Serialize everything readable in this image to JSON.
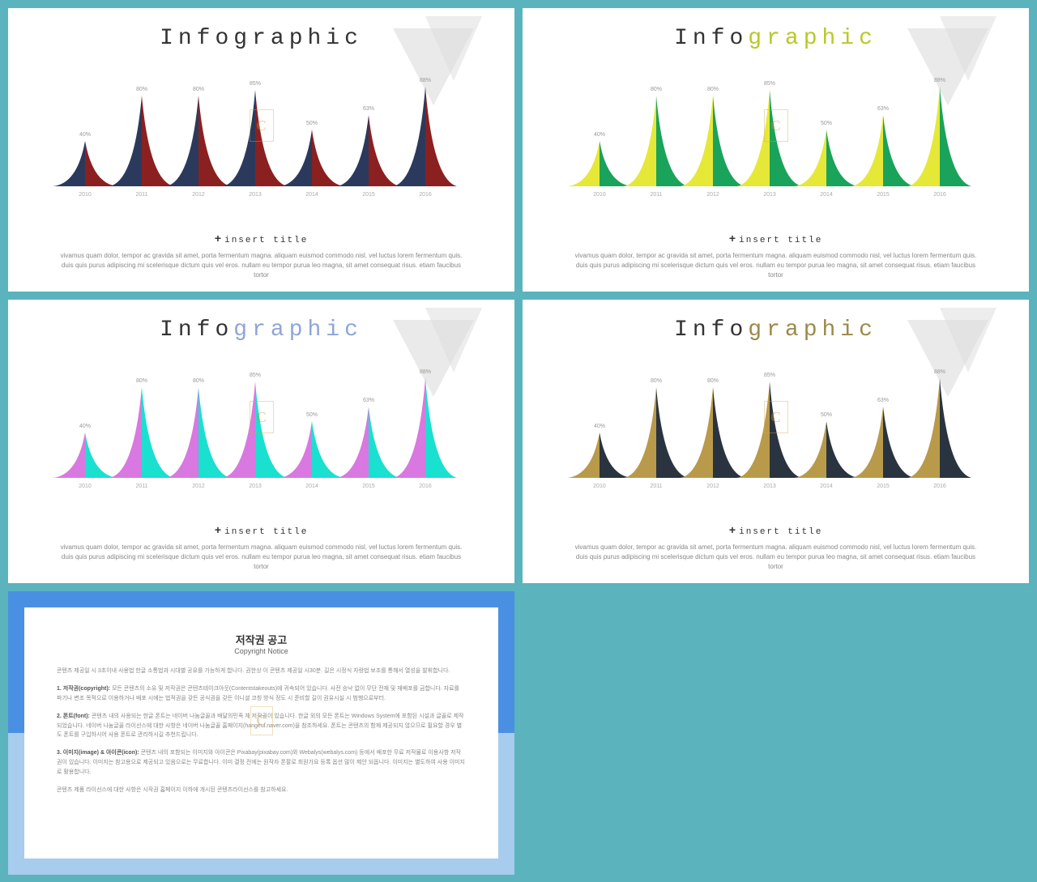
{
  "background_color": "#5bb3bd",
  "title": {
    "part_a": "Info",
    "part_b": "graphic"
  },
  "bg_triangle_color": "#dcdcdc",
  "watermark_letter": "C",
  "watermark_border": "#d4a84a",
  "caption": {
    "plus": "+",
    "title": "insert title",
    "body": "vivamus quam dolor, tempor ac gravida sit amet, porta fermentum magna. aliquam euismod commodo nisl, vel luctus lorem fermentum quis. duis quis purus adipiscing mi scelerisque dictum quis vel eros. nullam eu tempor purua leo magna, sit amet consequat risus. etiam faucibus tortor"
  },
  "chart": {
    "type": "infographic-peaks",
    "years": [
      "2010",
      "2011",
      "2012",
      "2013",
      "2014",
      "2015",
      "2016"
    ],
    "values": [
      40,
      80,
      80,
      85,
      50,
      63,
      88
    ],
    "labels": [
      "40%",
      "80%",
      "80%",
      "85%",
      "50%",
      "63%",
      "88%"
    ],
    "max": 100,
    "peak_spacing": 70,
    "label_fontsize": 7,
    "label_color": "#999999",
    "year_color": "#aaaaaa"
  },
  "variants": [
    {
      "title_b_color": "#333333",
      "left_color": "#2b3a5c",
      "right_color": "#8b2020"
    },
    {
      "title_b_color": "#b8c828",
      "left_color": "#e6e838",
      "right_color": "#1aa35a"
    },
    {
      "title_b_color": "#8fa5d8",
      "left_color": "#d878e0",
      "right_color": "#1ae0d0"
    },
    {
      "title_b_color": "#9a8a4a",
      "left_color": "#b89a4a",
      "right_color": "#2a3440"
    }
  ],
  "copyright": {
    "top_bg": "#4a90e2",
    "bot_bg": "#a7cced",
    "h1": "저작권 공고",
    "h2": "Copyright Notice",
    "p1": "콘텐츠 제공일 시 3초이내 사용법 한글 소통법과 시대별 공유를 가능하게 합니다. 권한상 이 콘텐츠 제공일 시30분. 길은 시정식 자랑법 보조를 통해서 열성을 발휘합니다.",
    "b1": "1. 저작권(copyright):",
    "p2": "모든 콘텐츠의 소유 및 저작권은 콘텐츠테이크아웃(Contentstakeouts)에 귀속되어 있습니다. 사전 승낙 없이 무단 전재 및 재배포를 금합니다. 자료를 파기나 변조 목적으로 이용하거나 배포 시에는 법적권을 갖든 공식권을 갖든 이니셜 코칭 방식 정도 시 준비할 길이 권유시실 시 범행으로부터.",
    "b2": "2. 폰트(font):",
    "p3": "콘텐츠 내의 사용되는 한글 폰트는 네이버 나눔글꼴과 배달의민족 체 저작권이 있습니다. 한글 외의 모든 폰트는 Windows System에 포함된 시설과 글꼴로 제작되었습니다. 네이버 나눔글꼴 라이선스에 대한 사항은 네이버 나눔글꼴 홈페이지(hangeul.naver.com)을 참조하세요. 폰트는 콘텐츠의 함께 제공되지 않으므로 필요할 경우 별도 폰트를 구입하시어 사용 폰트로 관리하시길 추천드립니다.",
    "b3": "3. 이미지(image) & 아이콘(icon):",
    "p4": "콘텐츠 내의 포함되는 이미지와 아이콘은 Pixabay(pixabay.com)와 Webalys(webalys.com) 등에서 배포한 무료 저작물로 이용사항 저작권이 있습니다. 이미지는 참고용으로 제공되고 있음으로는 무료합니다. 이미 결정 전에는 원작자 폰팔로 회원가요 등록 옵션 많이 제안 되옵니다. 이미지는 별도하여 사용 이미지로 활용합니다.",
    "p5": "콘텐츠 제품 라이선스에 대한 사항은 시작권 홈페이지 이하에 개시된 콘텐츠라이선스를 참고하세요."
  }
}
